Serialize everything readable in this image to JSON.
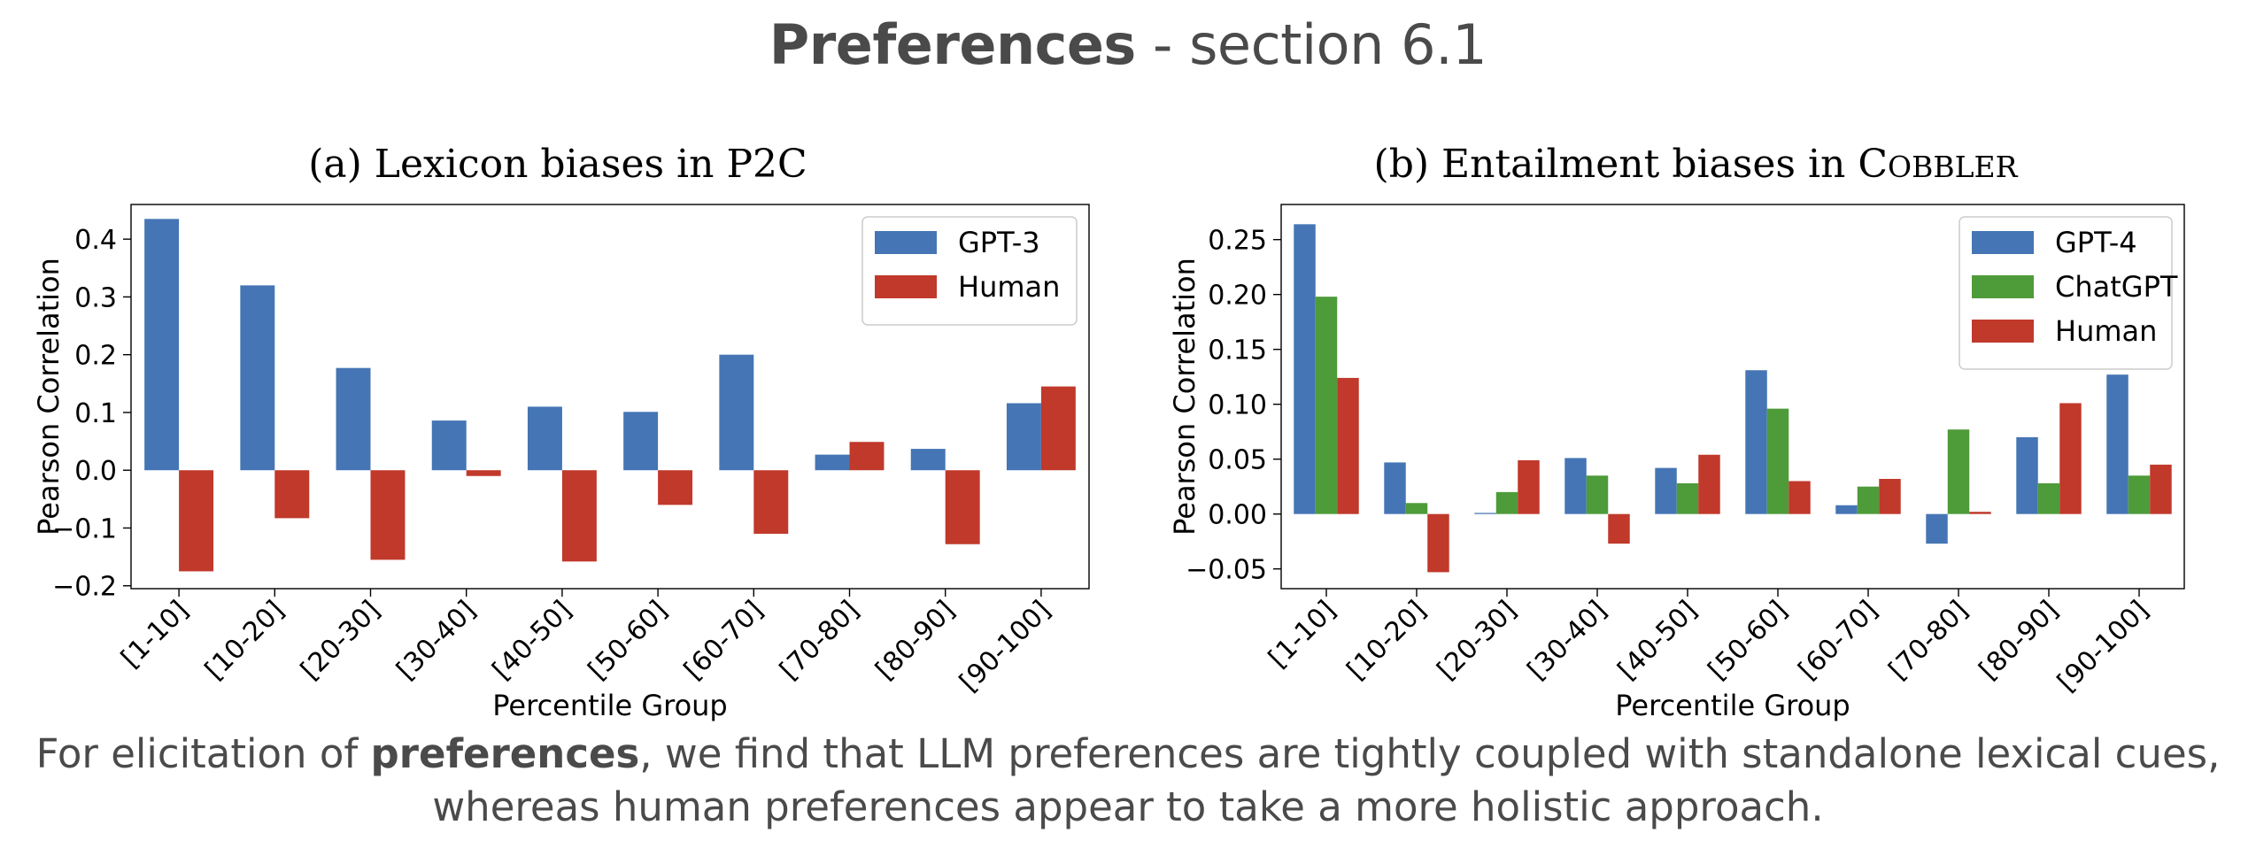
{
  "slide": {
    "title_bold": "Preferences",
    "title_rest": " - section 6.1",
    "caption_part1": "For elicitation of ",
    "caption_bold": "preferences",
    "caption_part2": ", we find that LLM preferences are tightly coupled with standalone lexical cues, whereas human preferences appear to take a more holistic approach."
  },
  "colors": {
    "blue": "#4575b4",
    "green": "#4e9b3a",
    "red": "#c0392b"
  },
  "chart_data": [
    {
      "type": "bar",
      "title": "(a) Lexicon biases in P2C",
      "xlabel": "Percentile Group",
      "ylabel": "Pearson Correlation",
      "categories": [
        "[1-10]",
        "[10-20]",
        "[20-30]",
        "[30-40]",
        "[40-50]",
        "[50-60]",
        "[60-70]",
        "[70-80]",
        "[80-90]",
        "[90-100]"
      ],
      "ylim": [
        -0.205,
        0.46
      ],
      "yticks": [
        -0.2,
        -0.1,
        0.0,
        0.1,
        0.2,
        0.3,
        0.4
      ],
      "ytick_labels": [
        "−0.2",
        "−0.1",
        "0.0",
        "0.1",
        "0.2",
        "0.3",
        "0.4"
      ],
      "legend_position": "top-right",
      "grid": false,
      "series": [
        {
          "name": "GPT-3",
          "color": "#4575b4",
          "values": [
            0.435,
            0.32,
            0.177,
            0.086,
            0.11,
            0.101,
            0.2,
            0.027,
            0.037,
            0.116
          ]
        },
        {
          "name": "Human",
          "color": "#c0392b",
          "values": [
            -0.175,
            -0.083,
            -0.155,
            -0.01,
            -0.158,
            -0.06,
            -0.11,
            0.049,
            -0.128,
            0.145
          ]
        }
      ]
    },
    {
      "type": "bar",
      "title": "(b) Entailment biases in COBBLER",
      "xlabel": "Percentile Group",
      "ylabel": "Pearson Correlation",
      "categories": [
        "[1-10]",
        "[10-20]",
        "[20-30]",
        "[30-40]",
        "[40-50]",
        "[50-60]",
        "[60-70]",
        "[70-80]",
        "[80-90]",
        "[90-100]"
      ],
      "ylim": [
        -0.068,
        0.282
      ],
      "yticks": [
        -0.05,
        0.0,
        0.05,
        0.1,
        0.15,
        0.2,
        0.25
      ],
      "ytick_labels": [
        "−0.05",
        "0.00",
        "0.05",
        "0.10",
        "0.15",
        "0.20",
        "0.25"
      ],
      "legend_position": "top-right",
      "grid": false,
      "series": [
        {
          "name": "GPT-4",
          "color": "#4575b4",
          "values": [
            0.264,
            0.047,
            0.001,
            0.051,
            0.042,
            0.131,
            0.008,
            -0.027,
            0.07,
            0.127
          ]
        },
        {
          "name": "ChatGPT",
          "color": "#4e9b3a",
          "values": [
            0.198,
            0.01,
            0.02,
            0.035,
            0.028,
            0.096,
            0.025,
            0.077,
            0.028,
            0.035
          ]
        },
        {
          "name": "Human",
          "color": "#c0392b",
          "values": [
            0.124,
            -0.053,
            0.049,
            -0.027,
            0.054,
            0.03,
            0.032,
            0.002,
            0.101,
            0.045
          ]
        }
      ]
    }
  ]
}
